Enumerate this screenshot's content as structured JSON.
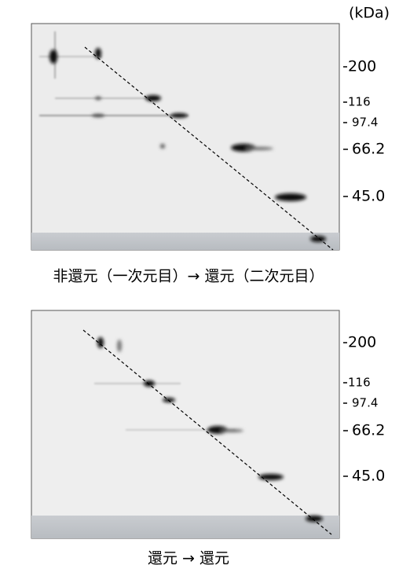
{
  "panels": [
    {
      "unit": "(kDa)",
      "markers": [
        "200",
        "116",
        "97.4",
        "66.2",
        "45.0"
      ],
      "caption": "非還元（一次元目）→ 還元（二次元目）"
    },
    {
      "markers": [
        "200",
        "116",
        "97.4",
        "66.2",
        "45.0"
      ],
      "caption": "還元 → 還元"
    }
  ]
}
